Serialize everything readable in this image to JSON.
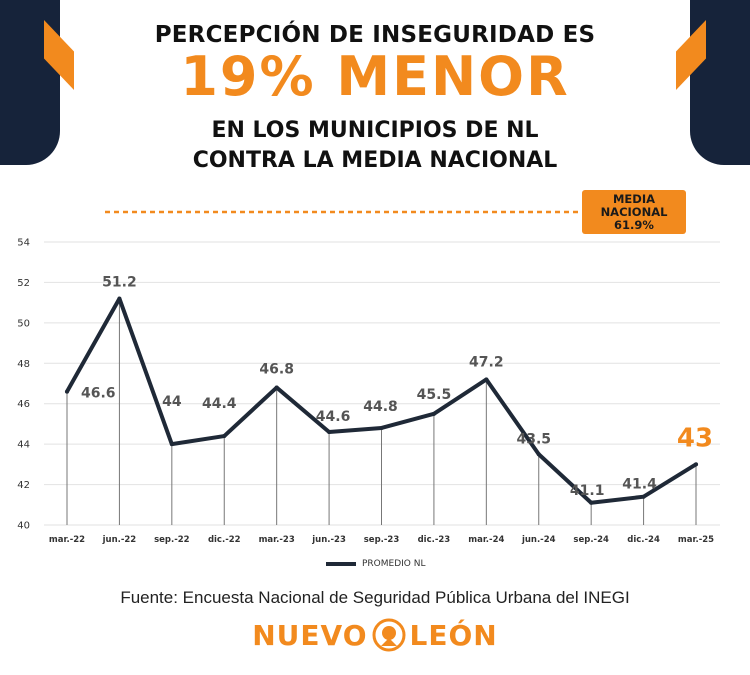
{
  "header": {
    "line1": "PERCEPCIÓN DE INSEGURIDAD ES",
    "line2": "19% MENOR",
    "line3": "EN LOS MUNICIPIOS DE NL",
    "line4": "CONTRA LA MEDIA NACIONAL"
  },
  "media_nacional": {
    "label_line1": "MEDIA",
    "label_line2": "NACIONAL",
    "value_label": "61.9%"
  },
  "legend": {
    "label": "PROMEDIO NL"
  },
  "source": "Fuente: Encuesta Nacional de Seguridad Pública Urbana del INEGI",
  "logo": {
    "left": "NUEVO",
    "right": "LEÓN",
    "icon": "lion-emblem-icon"
  },
  "colors": {
    "accent": "#f28a1e",
    "line": "#1f2937",
    "dark": "#16233a"
  },
  "chart_data": {
    "type": "line",
    "categories": [
      "mar.-22",
      "jun.-22",
      "sep.-22",
      "dic.-22",
      "mar.-23",
      "jun.-23",
      "sep.-23",
      "dic.-23",
      "mar.-24",
      "jun.-24",
      "sep.-24",
      "dic.-24",
      "mar.-25"
    ],
    "series": [
      {
        "name": "PROMEDIO NL",
        "values": [
          46.6,
          51.2,
          44,
          44.4,
          46.8,
          44.6,
          44.8,
          45.5,
          47.2,
          43.5,
          41.1,
          41.4,
          43
        ]
      }
    ],
    "data_labels": [
      "46.6",
      "51.2",
      "44",
      "44.4",
      "46.8",
      "44.6",
      "44.8",
      "45.5",
      "47.2",
      "43.5",
      "41.1",
      "41.4",
      "43"
    ],
    "yticks": [
      40,
      42,
      44,
      46,
      48,
      50,
      52,
      54
    ],
    "ylim": [
      40,
      54
    ],
    "grid": true,
    "legend_position": "bottom",
    "reference_line": {
      "value": 61.9,
      "label": "MEDIA NACIONAL 61.9%",
      "style": "dashed"
    },
    "highlight_last": true
  }
}
